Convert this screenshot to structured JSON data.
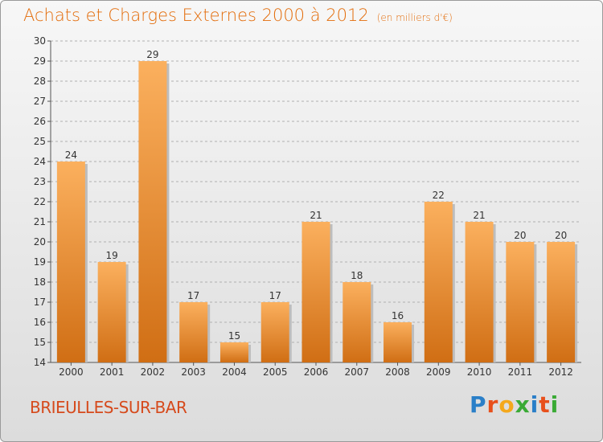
{
  "chart_data": {
    "type": "bar",
    "title": "Achats et Charges Externes 2000 à 2012",
    "subtitle": "(en milliers d'€)",
    "categories": [
      "2000",
      "2001",
      "2002",
      "2003",
      "2004",
      "2005",
      "2006",
      "2007",
      "2008",
      "2009",
      "2010",
      "2011",
      "2012"
    ],
    "values": [
      24,
      19,
      29,
      17,
      15,
      17,
      21,
      18,
      16,
      22,
      21,
      20,
      20
    ],
    "ylim": [
      14,
      30
    ],
    "yticks": [
      14,
      15,
      16,
      17,
      18,
      19,
      20,
      21,
      22,
      23,
      24,
      25,
      26,
      27,
      28,
      29,
      30
    ],
    "grid": true,
    "colors": {
      "bar_light": "#fbb05e",
      "bar_dark": "#d06e14",
      "grid": "#b0b0b0",
      "accent": "#e36c0a"
    }
  },
  "footer": {
    "commune": "BRIEULLES-SUR-BAR",
    "logo_letters": [
      "P",
      "r",
      "o",
      "x",
      "i",
      "t",
      "i"
    ],
    "logo_colors": [
      "#2a7fc8",
      "#e8501c",
      "#f4a81c",
      "#3aaa35",
      "#2a7fc8",
      "#e8501c",
      "#3aaa35"
    ]
  }
}
